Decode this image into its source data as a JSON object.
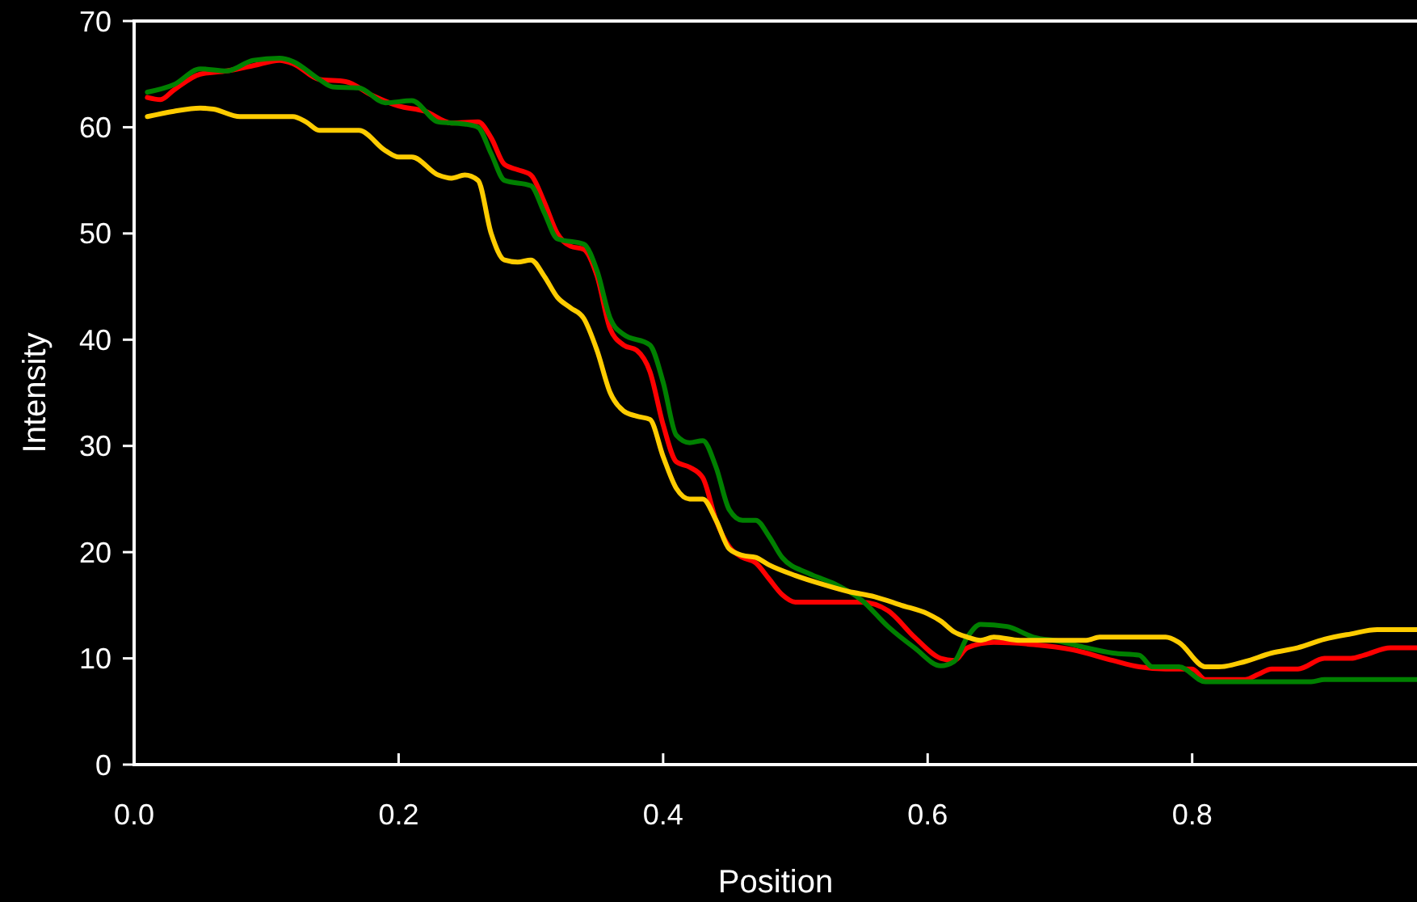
{
  "chart_data": {
    "type": "line",
    "xlabel": "Position",
    "ylabel": "Intensity",
    "xlim": [
      0,
      0.97
    ],
    "ylim": [
      0,
      70
    ],
    "xticks": [
      {
        "value": 0,
        "label": "0.0"
      },
      0.2,
      0.4,
      0.6,
      0.8
    ],
    "yticks": [
      0,
      10,
      20,
      30,
      40,
      50,
      60,
      70
    ],
    "grid": false,
    "marker": "none",
    "line_style": "solid",
    "series": [
      {
        "color": "#ff0000",
        "x": [
          0.01,
          0.02,
          0.03,
          0.05,
          0.07,
          0.09,
          0.11,
          0.12,
          0.14,
          0.16,
          0.18,
          0.2,
          0.22,
          0.24,
          0.26,
          0.27,
          0.28,
          0.29,
          0.3,
          0.31,
          0.32,
          0.33,
          0.34,
          0.35,
          0.36,
          0.37,
          0.38,
          0.39,
          0.4,
          0.41,
          0.42,
          0.43,
          0.44,
          0.45,
          0.46,
          0.47,
          0.48,
          0.49,
          0.5,
          0.52,
          0.55,
          0.57,
          0.59,
          0.61,
          0.62,
          0.63,
          0.65,
          0.68,
          0.71,
          0.74,
          0.76,
          0.78,
          0.8,
          0.81,
          0.84,
          0.85,
          0.86,
          0.88,
          0.9,
          0.92,
          0.93,
          0.95,
          0.97
        ],
        "values": [
          62.8,
          62.6,
          63.5,
          65,
          65.3,
          65.8,
          66.3,
          66,
          64.5,
          64.3,
          63,
          62,
          61.5,
          60.4,
          60.5,
          59,
          56.5,
          56,
          55.5,
          53,
          50,
          48.8,
          48.5,
          46,
          41,
          39.5,
          39,
          37,
          32,
          28.5,
          28,
          27,
          23,
          20.5,
          19.5,
          19,
          17.5,
          16,
          15.3,
          15.3,
          15.3,
          14.5,
          12,
          10,
          9.8,
          11,
          11.5,
          11.3,
          10.8,
          9.8,
          9.2,
          9,
          9,
          8,
          8,
          8.5,
          9,
          9,
          10,
          10,
          10.3,
          11,
          11
        ]
      },
      {
        "color": "#008000",
        "x": [
          0.01,
          0.03,
          0.05,
          0.07,
          0.09,
          0.11,
          0.12,
          0.14,
          0.15,
          0.17,
          0.19,
          0.21,
          0.23,
          0.25,
          0.26,
          0.27,
          0.28,
          0.3,
          0.31,
          0.32,
          0.34,
          0.35,
          0.36,
          0.37,
          0.39,
          0.4,
          0.41,
          0.42,
          0.43,
          0.44,
          0.45,
          0.46,
          0.47,
          0.48,
          0.49,
          0.51,
          0.53,
          0.55,
          0.57,
          0.59,
          0.61,
          0.62,
          0.63,
          0.64,
          0.66,
          0.68,
          0.7,
          0.72,
          0.74,
          0.76,
          0.77,
          0.79,
          0.81,
          0.85,
          0.89,
          0.9,
          0.97
        ],
        "values": [
          63.3,
          64,
          65.5,
          65.3,
          66.3,
          66.5,
          66.2,
          64.5,
          63.8,
          63.7,
          62.3,
          62.5,
          60.5,
          60.3,
          60,
          57.5,
          55,
          54.5,
          52,
          49.5,
          49,
          46.5,
          42,
          40.5,
          39.5,
          36,
          31,
          30.3,
          30.5,
          28,
          24,
          23,
          23,
          21.5,
          19.5,
          18,
          17,
          15.5,
          13,
          11,
          9.3,
          9.7,
          12,
          13.2,
          13,
          12,
          11.6,
          11,
          10.5,
          10.3,
          9.2,
          9.2,
          7.8,
          7.8,
          7.8,
          8,
          8
        ]
      },
      {
        "color": "#ffcc00",
        "x": [
          0.01,
          0.03,
          0.05,
          0.06,
          0.08,
          0.12,
          0.13,
          0.14,
          0.17,
          0.19,
          0.2,
          0.21,
          0.23,
          0.24,
          0.25,
          0.26,
          0.27,
          0.28,
          0.29,
          0.3,
          0.31,
          0.32,
          0.33,
          0.34,
          0.35,
          0.36,
          0.37,
          0.38,
          0.39,
          0.4,
          0.41,
          0.42,
          0.43,
          0.44,
          0.45,
          0.46,
          0.47,
          0.48,
          0.5,
          0.52,
          0.54,
          0.56,
          0.58,
          0.6,
          0.61,
          0.62,
          0.63,
          0.64,
          0.65,
          0.67,
          0.7,
          0.72,
          0.73,
          0.78,
          0.79,
          0.81,
          0.82,
          0.84,
          0.86,
          0.88,
          0.9,
          0.92,
          0.94,
          0.97
        ],
        "values": [
          61,
          61.5,
          61.8,
          61.7,
          61,
          61,
          60.5,
          59.7,
          59.7,
          57.8,
          57.2,
          57.2,
          55.5,
          55.2,
          55.5,
          55,
          50,
          47.5,
          47.3,
          47.5,
          46,
          44,
          43,
          42,
          39,
          35,
          33.3,
          32.8,
          32.5,
          29,
          26,
          25,
          25,
          23,
          20.3,
          19.7,
          19.5,
          18.8,
          17.8,
          17,
          16.3,
          15.8,
          15,
          14.2,
          13.5,
          12.5,
          12,
          11.7,
          12,
          11.7,
          11.7,
          11.7,
          12,
          12,
          11.5,
          9.2,
          9.2,
          9.7,
          10.5,
          11,
          11.8,
          12.3,
          12.7,
          12.7
        ]
      }
    ]
  }
}
